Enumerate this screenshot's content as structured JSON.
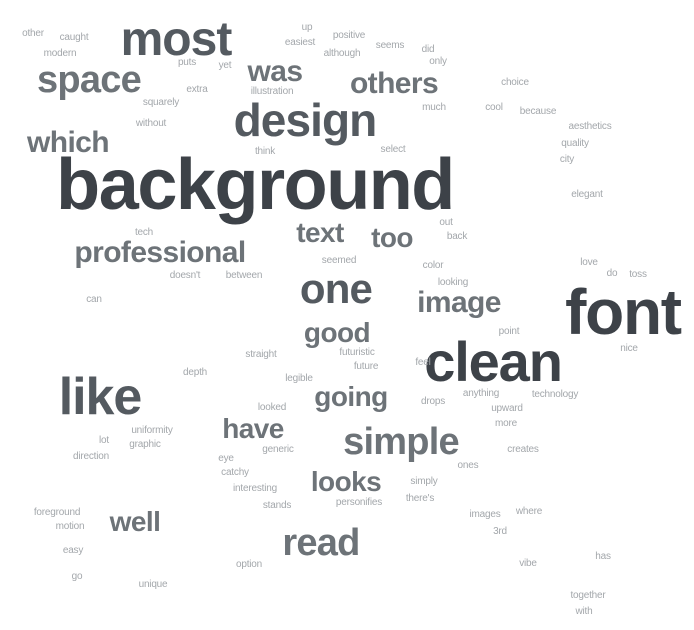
{
  "colors": {
    "xl": "#3d4248",
    "lg": "#545a60",
    "md": "#6d7378",
    "sm": "#8a8f94",
    "xs": "#a3a7ab"
  },
  "words": [
    {
      "text": "background",
      "tier": "xl"
    },
    {
      "text": "font",
      "tier": "xl"
    },
    {
      "text": "clean",
      "tier": "xl"
    },
    {
      "text": "most",
      "tier": "lg"
    },
    {
      "text": "design",
      "tier": "lg"
    },
    {
      "text": "like",
      "tier": "lg"
    },
    {
      "text": "one",
      "tier": "lg"
    },
    {
      "text": "space",
      "tier": "md"
    },
    {
      "text": "read",
      "tier": "md"
    },
    {
      "text": "simple",
      "tier": "md"
    },
    {
      "text": "was",
      "tier": "md"
    },
    {
      "text": "others",
      "tier": "md"
    },
    {
      "text": "image",
      "tier": "md"
    },
    {
      "text": "professional",
      "tier": "md"
    },
    {
      "text": "which",
      "tier": "md"
    },
    {
      "text": "text",
      "tier": "md"
    },
    {
      "text": "too",
      "tier": "md"
    },
    {
      "text": "good",
      "tier": "md"
    },
    {
      "text": "going",
      "tier": "md"
    },
    {
      "text": "have",
      "tier": "md"
    },
    {
      "text": "looks",
      "tier": "md"
    },
    {
      "text": "well",
      "tier": "md"
    },
    {
      "text": "other",
      "tier": "xs"
    },
    {
      "text": "caught",
      "tier": "xs"
    },
    {
      "text": "modern",
      "tier": "xs"
    },
    {
      "text": "up",
      "tier": "xs"
    },
    {
      "text": "easiest",
      "tier": "xs"
    },
    {
      "text": "positive",
      "tier": "xs"
    },
    {
      "text": "seems",
      "tier": "xs"
    },
    {
      "text": "although",
      "tier": "xs"
    },
    {
      "text": "did",
      "tier": "xs"
    },
    {
      "text": "only",
      "tier": "xs"
    },
    {
      "text": "puts",
      "tier": "xs"
    },
    {
      "text": "yet",
      "tier": "xs"
    },
    {
      "text": "extra",
      "tier": "xs"
    },
    {
      "text": "illustration",
      "tier": "xs"
    },
    {
      "text": "squarely",
      "tier": "xs"
    },
    {
      "text": "without",
      "tier": "xs"
    },
    {
      "text": "choice",
      "tier": "xs"
    },
    {
      "text": "much",
      "tier": "xs"
    },
    {
      "text": "cool",
      "tier": "xs"
    },
    {
      "text": "because",
      "tier": "xs"
    },
    {
      "text": "aesthetics",
      "tier": "xs"
    },
    {
      "text": "quality",
      "tier": "xs"
    },
    {
      "text": "city",
      "tier": "xs"
    },
    {
      "text": "think",
      "tier": "xs"
    },
    {
      "text": "select",
      "tier": "xs"
    },
    {
      "text": "elegant",
      "tier": "xs"
    },
    {
      "text": "tech",
      "tier": "xs"
    },
    {
      "text": "out",
      "tier": "xs"
    },
    {
      "text": "back",
      "tier": "xs"
    },
    {
      "text": "seemed",
      "tier": "xs"
    },
    {
      "text": "color",
      "tier": "xs"
    },
    {
      "text": "love",
      "tier": "xs"
    },
    {
      "text": "do",
      "tier": "xs"
    },
    {
      "text": "toss",
      "tier": "xs"
    },
    {
      "text": "doesn't",
      "tier": "xs"
    },
    {
      "text": "between",
      "tier": "xs"
    },
    {
      "text": "looking",
      "tier": "xs"
    },
    {
      "text": "can",
      "tier": "xs"
    },
    {
      "text": "point",
      "tier": "xs"
    },
    {
      "text": "nice",
      "tier": "xs"
    },
    {
      "text": "straight",
      "tier": "xs"
    },
    {
      "text": "futuristic",
      "tier": "xs"
    },
    {
      "text": "future",
      "tier": "xs"
    },
    {
      "text": "feel",
      "tier": "xs"
    },
    {
      "text": "depth",
      "tier": "xs"
    },
    {
      "text": "legible",
      "tier": "xs"
    },
    {
      "text": "anything",
      "tier": "xs"
    },
    {
      "text": "technology",
      "tier": "xs"
    },
    {
      "text": "drops",
      "tier": "xs"
    },
    {
      "text": "upward",
      "tier": "xs"
    },
    {
      "text": "looked",
      "tier": "xs"
    },
    {
      "text": "more",
      "tier": "xs"
    },
    {
      "text": "uniformity",
      "tier": "xs"
    },
    {
      "text": "lot",
      "tier": "xs"
    },
    {
      "text": "graphic",
      "tier": "xs"
    },
    {
      "text": "generic",
      "tier": "xs"
    },
    {
      "text": "creates",
      "tier": "xs"
    },
    {
      "text": "direction",
      "tier": "xs"
    },
    {
      "text": "eye",
      "tier": "xs"
    },
    {
      "text": "ones",
      "tier": "xs"
    },
    {
      "text": "catchy",
      "tier": "xs"
    },
    {
      "text": "simply",
      "tier": "xs"
    },
    {
      "text": "interesting",
      "tier": "xs"
    },
    {
      "text": "there's",
      "tier": "xs"
    },
    {
      "text": "stands",
      "tier": "xs"
    },
    {
      "text": "personifies",
      "tier": "xs"
    },
    {
      "text": "foreground",
      "tier": "xs"
    },
    {
      "text": "motion",
      "tier": "xs"
    },
    {
      "text": "images",
      "tier": "xs"
    },
    {
      "text": "where",
      "tier": "xs"
    },
    {
      "text": "3rd",
      "tier": "xs"
    },
    {
      "text": "easy",
      "tier": "xs"
    },
    {
      "text": "has",
      "tier": "xs"
    },
    {
      "text": "option",
      "tier": "xs"
    },
    {
      "text": "vibe",
      "tier": "xs"
    },
    {
      "text": "go",
      "tier": "xs"
    },
    {
      "text": "unique",
      "tier": "xs"
    },
    {
      "text": "together",
      "tier": "xs"
    },
    {
      "text": "with",
      "tier": "xs"
    }
  ]
}
